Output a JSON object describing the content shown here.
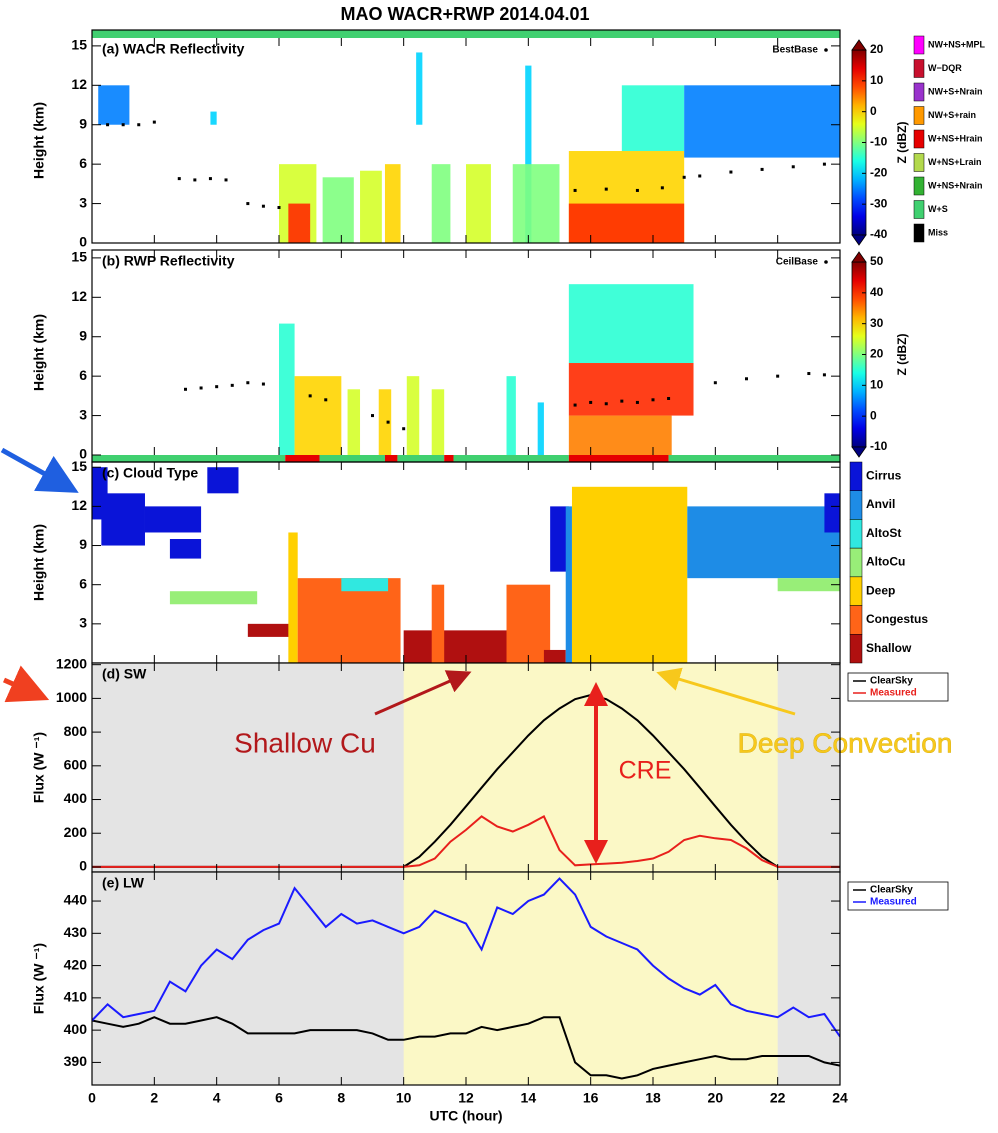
{
  "title": "MAO WACR+RWP  2014.04.01",
  "status_flags": {
    "names": [
      "NW+NS+MPL",
      "W−DQR",
      "NW+S+Nrain",
      "NW+S+rain",
      "W+NS+Hrain",
      "W+NS+Lrain",
      "W+NS+Nrain",
      "W+S",
      "Miss"
    ],
    "colors": [
      "#ff00ff",
      "#c8102e",
      "#9933cc",
      "#ff9900",
      "#e60000",
      "#b3d94d",
      "#33b233",
      "#40d070",
      "#000000"
    ]
  },
  "chart_data": [
    {
      "type": "heatmap",
      "title": "(a) WACR Reflectivity",
      "ylabel": "Height (km)",
      "ylim": [
        0,
        15.6
      ],
      "yticks": [
        0,
        3,
        6,
        9,
        12,
        15
      ],
      "base_label": "BestBase",
      "colorbar": {
        "label": "Z (dBZ)",
        "clim": [
          -40,
          20
        ],
        "ticks": [
          -40,
          -30,
          -20,
          -10,
          0,
          10,
          20
        ]
      },
      "status": [
        {
          "x": [
            0,
            24
          ],
          "flag": 7
        }
      ],
      "cells": [
        {
          "x": [
            0.2,
            1.2
          ],
          "y": [
            9,
            12
          ],
          "z": -25
        },
        {
          "x": [
            3.8,
            4.0
          ],
          "y": [
            9,
            10
          ],
          "z": -20
        },
        {
          "x": [
            6.0,
            7.2
          ],
          "y": [
            0,
            6
          ],
          "z": -5
        },
        {
          "x": [
            6.3,
            7.0
          ],
          "y": [
            0,
            3
          ],
          "z": 10
        },
        {
          "x": [
            7.4,
            8.4
          ],
          "y": [
            0,
            5
          ],
          "z": -10
        },
        {
          "x": [
            8.6,
            9.3
          ],
          "y": [
            0,
            5.5
          ],
          "z": -5
        },
        {
          "x": [
            9.4,
            9.9
          ],
          "y": [
            0,
            6
          ],
          "z": 0
        },
        {
          "x": [
            10.4,
            10.6
          ],
          "y": [
            9,
            14.5
          ],
          "z": -20
        },
        {
          "x": [
            10.9,
            11.5
          ],
          "y": [
            0,
            6
          ],
          "z": -10
        },
        {
          "x": [
            12.0,
            12.8
          ],
          "y": [
            0,
            6
          ],
          "z": -5
        },
        {
          "x": [
            13.9,
            14.1
          ],
          "y": [
            0,
            13.5
          ],
          "z": -20
        },
        {
          "x": [
            13.5,
            15.0
          ],
          "y": [
            0,
            6
          ],
          "z": -10
        },
        {
          "x": [
            15.3,
            19.0
          ],
          "y": [
            0,
            7
          ],
          "z": 0
        },
        {
          "x": [
            15.3,
            19.0
          ],
          "y": [
            0,
            3
          ],
          "z": 10
        },
        {
          "x": [
            17.0,
            19.0
          ],
          "y": [
            7,
            12
          ],
          "z": -15
        },
        {
          "x": [
            19.0,
            24.0
          ],
          "y": [
            6.5,
            12
          ],
          "z": -25
        }
      ],
      "bases": {
        "x": [
          0.5,
          1,
          1.5,
          2,
          2.8,
          3.3,
          3.8,
          4.3,
          5.0,
          5.5,
          6.0,
          15.5,
          16.5,
          17.5,
          18.3,
          19,
          19.5,
          20.5,
          21.5,
          22.5,
          23.5
        ],
        "y": [
          9,
          9,
          9,
          9.2,
          4.9,
          4.8,
          4.9,
          4.8,
          3.0,
          2.8,
          2.7,
          4.0,
          4.1,
          4.0,
          4.2,
          5.0,
          5.1,
          5.4,
          5.6,
          5.8,
          6.0
        ]
      }
    },
    {
      "type": "heatmap",
      "title": "(b) RWP Reflectivity",
      "ylabel": "Height (km)",
      "ylim": [
        0,
        15.6
      ],
      "yticks": [
        0,
        3,
        6,
        9,
        12,
        15
      ],
      "base_label": "CeilBase",
      "colorbar": {
        "label": "Z (dBZ)",
        "clim": [
          -10,
          50
        ],
        "ticks": [
          -10,
          0,
          10,
          20,
          30,
          40,
          50
        ]
      },
      "status": [
        {
          "x": [
            0,
            6.2
          ],
          "flag": 7
        },
        {
          "x": [
            6.2,
            7.3
          ],
          "flag": 4
        },
        {
          "x": [
            7.3,
            9.4
          ],
          "flag": 7
        },
        {
          "x": [
            9.4,
            9.8
          ],
          "flag": 4
        },
        {
          "x": [
            9.8,
            11.3
          ],
          "flag": 7
        },
        {
          "x": [
            11.3,
            11.6
          ],
          "flag": 4
        },
        {
          "x": [
            11.6,
            15.3
          ],
          "flag": 7
        },
        {
          "x": [
            15.3,
            18.5
          ],
          "flag": 4
        },
        {
          "x": [
            18.5,
            24
          ],
          "flag": 7
        }
      ],
      "cells": [
        {
          "x": [
            6.0,
            6.5
          ],
          "y": [
            0,
            10
          ],
          "z": 15
        },
        {
          "x": [
            6.5,
            8.0
          ],
          "y": [
            0,
            6
          ],
          "z": 30
        },
        {
          "x": [
            8.2,
            8.6
          ],
          "y": [
            0,
            5
          ],
          "z": 25
        },
        {
          "x": [
            9.2,
            9.6
          ],
          "y": [
            0,
            5
          ],
          "z": 30
        },
        {
          "x": [
            10.1,
            10.5
          ],
          "y": [
            0,
            6
          ],
          "z": 25
        },
        {
          "x": [
            10.9,
            11.3
          ],
          "y": [
            0,
            5
          ],
          "z": 25
        },
        {
          "x": [
            13.3,
            13.6
          ],
          "y": [
            0,
            6
          ],
          "z": 15
        },
        {
          "x": [
            14.3,
            14.5
          ],
          "y": [
            0,
            4
          ],
          "z": 10
        },
        {
          "x": [
            15.3,
            19.3
          ],
          "y": [
            7,
            13
          ],
          "z": 15
        },
        {
          "x": [
            15.3,
            19.3
          ],
          "y": [
            3,
            7
          ],
          "z": 40
        },
        {
          "x": [
            15.3,
            18.6
          ],
          "y": [
            0,
            3
          ],
          "z": 35
        }
      ],
      "bases": {
        "x": [
          3,
          3.5,
          4,
          4.5,
          5,
          5.5,
          7,
          7.5,
          9,
          9.5,
          10,
          15.5,
          16,
          16.5,
          17,
          17.5,
          18,
          18.5,
          20,
          21,
          22,
          23,
          23.5
        ],
        "y": [
          5.0,
          5.1,
          5.2,
          5.3,
          5.5,
          5.4,
          4.5,
          4.2,
          3.0,
          2.5,
          2.0,
          3.8,
          4.0,
          3.9,
          4.1,
          4.0,
          4.2,
          4.3,
          5.5,
          5.8,
          6.0,
          6.2,
          6.1
        ]
      }
    },
    {
      "type": "cloud_type",
      "title": "(c) Cloud Type",
      "ylabel": "Height (km)",
      "ylim": [
        0,
        15.4
      ],
      "yticks": [
        3,
        6,
        9,
        12,
        15
      ],
      "types": [
        "Cirrus",
        "Anvil",
        "AltoSt",
        "AltoCu",
        "Deep",
        "Congestus",
        "Shallow"
      ],
      "colors": [
        "#0a14d8",
        "#1e8ce6",
        "#30e8e0",
        "#98ee78",
        "#ffd000",
        "#ff6418",
        "#b01010"
      ],
      "regions": [
        {
          "x": [
            0,
            0.5
          ],
          "y": [
            11,
            15
          ],
          "type": 0
        },
        {
          "x": [
            0.3,
            1.7
          ],
          "y": [
            9,
            13
          ],
          "type": 0
        },
        {
          "x": [
            1.7,
            3.5
          ],
          "y": [
            10,
            12
          ],
          "type": 0
        },
        {
          "x": [
            2.5,
            3.5
          ],
          "y": [
            8,
            9.5
          ],
          "type": 0
        },
        {
          "x": [
            3.7,
            4.7
          ],
          "y": [
            13,
            15
          ],
          "type": 0
        },
        {
          "x": [
            2.5,
            5.3
          ],
          "y": [
            4.5,
            5.5
          ],
          "type": 3
        },
        {
          "x": [
            5.0,
            6.4
          ],
          "y": [
            2,
            3
          ],
          "type": 6
        },
        {
          "x": [
            6.3,
            6.6
          ],
          "y": [
            0,
            10
          ],
          "type": 4
        },
        {
          "x": [
            6.6,
            9.9
          ],
          "y": [
            0,
            6.5
          ],
          "type": 5
        },
        {
          "x": [
            8.0,
            9.5
          ],
          "y": [
            5.5,
            6.5
          ],
          "type": 2
        },
        {
          "x": [
            10.0,
            14.5
          ],
          "y": [
            0,
            2.5
          ],
          "type": 6
        },
        {
          "x": [
            10.9,
            11.3
          ],
          "y": [
            0,
            6
          ],
          "type": 5
        },
        {
          "x": [
            13.3,
            14.7
          ],
          "y": [
            0,
            6
          ],
          "type": 5
        },
        {
          "x": [
            14.5,
            15.2
          ],
          "y": [
            0,
            1
          ],
          "type": 6
        },
        {
          "x": [
            14.7,
            15.3
          ],
          "y": [
            7,
            12
          ],
          "type": 0
        },
        {
          "x": [
            15.2,
            15.4
          ],
          "y": [
            0,
            12
          ],
          "type": 1
        },
        {
          "x": [
            15.4,
            19.1
          ],
          "y": [
            0,
            13.5
          ],
          "type": 4
        },
        {
          "x": [
            19.1,
            24
          ],
          "y": [
            6.5,
            12
          ],
          "type": 1
        },
        {
          "x": [
            22,
            24
          ],
          "y": [
            5.5,
            6.5
          ],
          "type": 3
        },
        {
          "x": [
            23.5,
            24
          ],
          "y": [
            10,
            13
          ],
          "type": 0
        }
      ]
    },
    {
      "type": "line",
      "title": "(d) SW",
      "ylabel": "Flux (W ⁻¹)",
      "ylim": [
        -30,
        1210
      ],
      "yticks": [
        0,
        200,
        400,
        600,
        800,
        1000,
        1200
      ],
      "highlight_x": [
        10,
        22
      ],
      "x": [
        0,
        0.5,
        1,
        1.5,
        2,
        2.5,
        3,
        3.5,
        4,
        4.5,
        5,
        5.5,
        6,
        6.5,
        7,
        7.5,
        8,
        8.5,
        9,
        9.5,
        10,
        10.5,
        11,
        11.5,
        12,
        12.5,
        13,
        13.5,
        14,
        14.5,
        15,
        15.5,
        16,
        16.5,
        17,
        17.5,
        18,
        18.5,
        19,
        19.5,
        20,
        20.5,
        21,
        21.5,
        22,
        22.5,
        23,
        23.5,
        24
      ],
      "series": [
        {
          "name": "ClearSky",
          "color": "#000000",
          "values": [
            0,
            0,
            0,
            0,
            0,
            0,
            0,
            0,
            0,
            0,
            0,
            0,
            0,
            0,
            0,
            0,
            0,
            0,
            0,
            0,
            0,
            60,
            150,
            250,
            360,
            470,
            580,
            680,
            780,
            870,
            940,
            995,
            1020,
            995,
            940,
            870,
            780,
            680,
            580,
            470,
            360,
            250,
            150,
            60,
            0,
            0,
            0,
            0,
            0
          ]
        },
        {
          "name": "Measured",
          "color": "#e8201c",
          "values": [
            0,
            0,
            0,
            0,
            0,
            0,
            0,
            0,
            0,
            0,
            0,
            0,
            0,
            0,
            0,
            0,
            0,
            0,
            0,
            0,
            0,
            10,
            50,
            150,
            220,
            300,
            240,
            210,
            250,
            300,
            100,
            10,
            15,
            20,
            25,
            35,
            50,
            90,
            160,
            185,
            170,
            160,
            110,
            40,
            0,
            0,
            0,
            0,
            0
          ]
        }
      ],
      "annotations": [
        {
          "text": "Shallow Cu",
          "color": "#b2181b"
        },
        {
          "text": "Deep Convection",
          "color": "#f7c81c"
        },
        {
          "text": "CRE",
          "color": "#e8201c"
        }
      ]
    },
    {
      "type": "line",
      "title": "(e) LW",
      "ylabel": "Flux (W ⁻¹)",
      "ylim": [
        383,
        449
      ],
      "yticks": [
        390,
        400,
        410,
        420,
        430,
        440
      ],
      "xlabel": "UTC (hour)",
      "xlim": [
        0,
        24
      ],
      "xticks": [
        0,
        2,
        4,
        6,
        8,
        10,
        12,
        14,
        16,
        18,
        20,
        22,
        24
      ],
      "highlight_x": [
        10,
        22
      ],
      "x": [
        0,
        0.5,
        1,
        1.5,
        2,
        2.5,
        3,
        3.5,
        4,
        4.5,
        5,
        5.5,
        6,
        6.5,
        7,
        7.5,
        8,
        8.5,
        9,
        9.5,
        10,
        10.5,
        11,
        11.5,
        12,
        12.5,
        13,
        13.5,
        14,
        14.5,
        15,
        15.5,
        16,
        16.5,
        17,
        17.5,
        18,
        18.5,
        19,
        19.5,
        20,
        20.5,
        21,
        21.5,
        22,
        22.5,
        23,
        23.5,
        24
      ],
      "series": [
        {
          "name": "ClearSky",
          "color": "#000000",
          "values": [
            403,
            402,
            401,
            402,
            404,
            402,
            402,
            403,
            404,
            402,
            399,
            399,
            399,
            399,
            400,
            400,
            400,
            400,
            399,
            397,
            397,
            398,
            398,
            399,
            399,
            401,
            400,
            401,
            402,
            404,
            404,
            390,
            386,
            386,
            385,
            386,
            388,
            389,
            390,
            391,
            392,
            391,
            391,
            392,
            392,
            392,
            392,
            390,
            389
          ]
        },
        {
          "name": "Measured",
          "color": "#1a1aff",
          "values": [
            403,
            408,
            404,
            405,
            406,
            415,
            412,
            420,
            425,
            422,
            428,
            431,
            433,
            444,
            438,
            432,
            436,
            433,
            434,
            432,
            430,
            432,
            437,
            435,
            433,
            425,
            438,
            436,
            440,
            442,
            447,
            442,
            432,
            429,
            427,
            425,
            420,
            416,
            413,
            411,
            414,
            408,
            406,
            405,
            404,
            407,
            404,
            405,
            398
          ]
        }
      ]
    }
  ]
}
